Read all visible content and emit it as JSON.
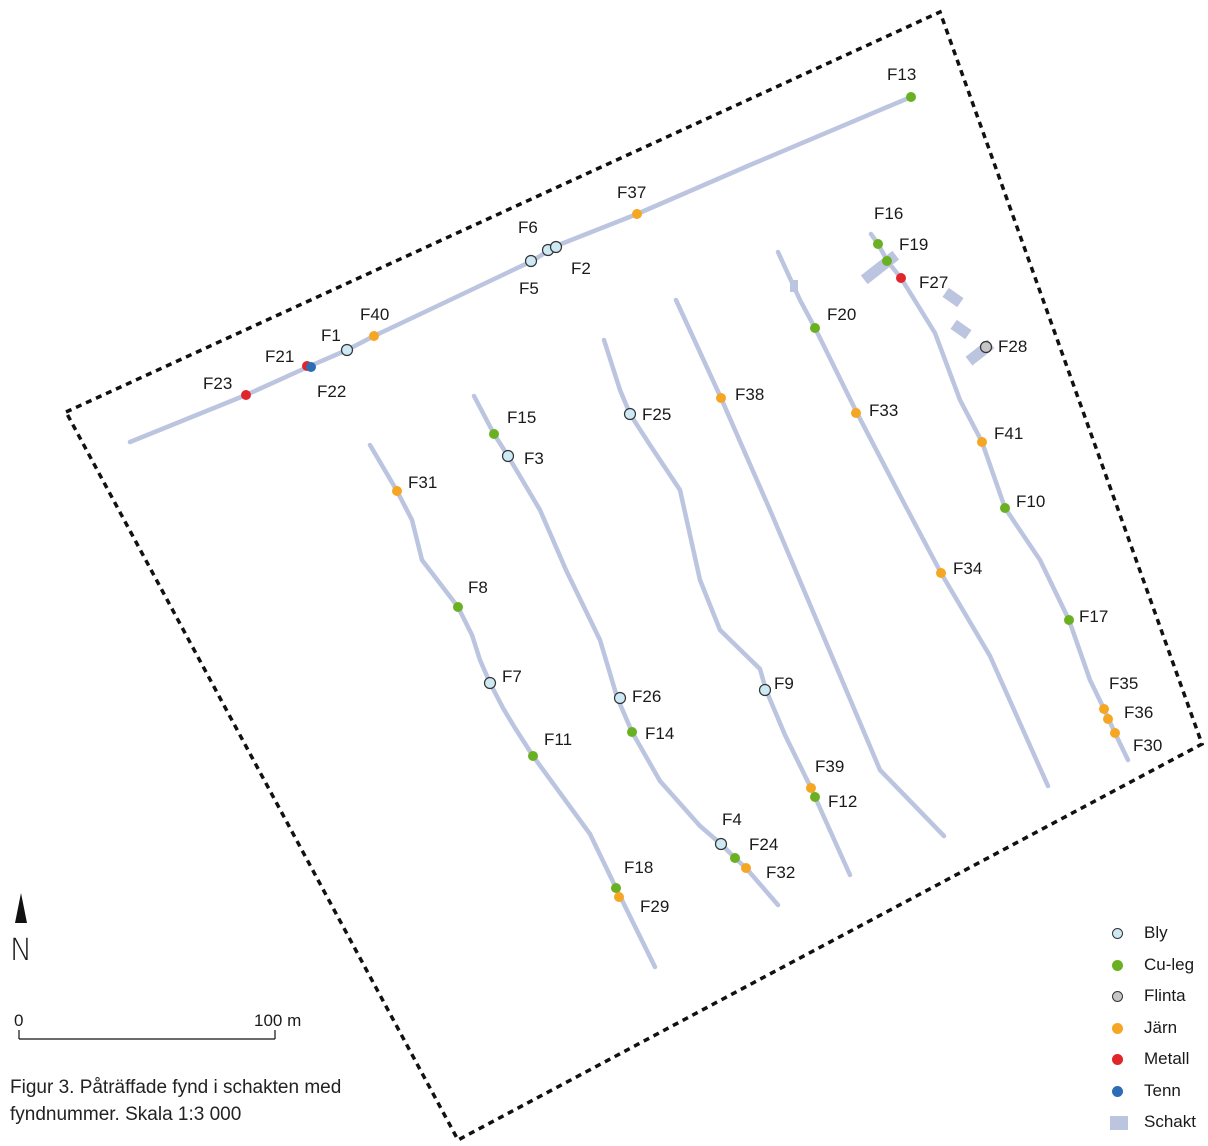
{
  "legend": {
    "items": [
      {
        "key": "bly",
        "label": "Bly",
        "color": "#cde9f3",
        "stroke": "#333333"
      },
      {
        "key": "culeg",
        "label": "Cu-leg",
        "color": "#6ab023",
        "stroke": ""
      },
      {
        "key": "flinta",
        "label": "Flinta",
        "color": "#c6c6c6",
        "stroke": "#333333"
      },
      {
        "key": "jarn",
        "label": "Järn",
        "color": "#f5a623",
        "stroke": ""
      },
      {
        "key": "metall",
        "label": "Metall",
        "color": "#e0262b",
        "stroke": ""
      },
      {
        "key": "tenn",
        "label": "Tenn",
        "color": "#2c6db5",
        "stroke": ""
      },
      {
        "key": "schakt",
        "label": "Schakt",
        "color": "#bcc5e0",
        "stroke": ""
      }
    ]
  },
  "north_arrow": {
    "label": "N"
  },
  "scale_bar": {
    "start_label": "0",
    "end_label": "100 m"
  },
  "caption": {
    "line1": "Figur 3. Påträffade fynd i schakten med",
    "line2": "fyndnummer. Skala 1:3 000"
  },
  "finds": [
    {
      "id": "F13",
      "type": "culeg"
    },
    {
      "id": "F37",
      "type": "jarn"
    },
    {
      "id": "F6",
      "type": "bly"
    },
    {
      "id": "F2",
      "type": "bly"
    },
    {
      "id": "F5",
      "type": "bly"
    },
    {
      "id": "F40",
      "type": "jarn"
    },
    {
      "id": "F1",
      "type": "bly"
    },
    {
      "id": "F21",
      "type": "metall"
    },
    {
      "id": "F22",
      "type": "tenn"
    },
    {
      "id": "F23",
      "type": "metall"
    },
    {
      "id": "F16",
      "type": "culeg"
    },
    {
      "id": "F19",
      "type": "culeg"
    },
    {
      "id": "F27",
      "type": "metall"
    },
    {
      "id": "F28",
      "type": "flinta"
    },
    {
      "id": "F20",
      "type": "culeg"
    },
    {
      "id": "F33",
      "type": "jarn"
    },
    {
      "id": "F41",
      "type": "jarn"
    },
    {
      "id": "F10",
      "type": "culeg"
    },
    {
      "id": "F34",
      "type": "jarn"
    },
    {
      "id": "F17",
      "type": "culeg"
    },
    {
      "id": "F35",
      "type": "jarn"
    },
    {
      "id": "F36",
      "type": "jarn"
    },
    {
      "id": "F30",
      "type": "jarn"
    },
    {
      "id": "F38",
      "type": "jarn"
    },
    {
      "id": "F25",
      "type": "bly"
    },
    {
      "id": "F9",
      "type": "bly"
    },
    {
      "id": "F39",
      "type": "jarn"
    },
    {
      "id": "F12",
      "type": "culeg"
    },
    {
      "id": "F15",
      "type": "culeg"
    },
    {
      "id": "F3",
      "type": "bly"
    },
    {
      "id": "F26",
      "type": "bly"
    },
    {
      "id": "F14",
      "type": "culeg"
    },
    {
      "id": "F4",
      "type": "bly"
    },
    {
      "id": "F24",
      "type": "culeg"
    },
    {
      "id": "F32",
      "type": "jarn"
    },
    {
      "id": "F31",
      "type": "jarn"
    },
    {
      "id": "F8",
      "type": "culeg"
    },
    {
      "id": "F7",
      "type": "bly"
    },
    {
      "id": "F11",
      "type": "culeg"
    },
    {
      "id": "F18",
      "type": "culeg"
    },
    {
      "id": "F29",
      "type": "jarn"
    }
  ]
}
